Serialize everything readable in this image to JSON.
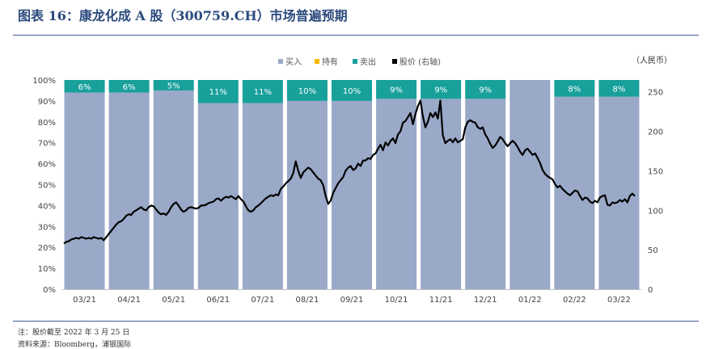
{
  "title": "图表 16：康龙化成 A 股（300759.CH）市场普遍预期",
  "note": "注：股价截至 2022 年 3 月 25 日",
  "source": "资料来源：Bloomberg，浦银国际",
  "colors": {
    "buy": "#9aa9c8",
    "hold": "#f5b800",
    "sell": "#18a09b",
    "price": "#000000",
    "rule": "#3d5f95"
  },
  "chart_data": {
    "type": "bar",
    "stacked": true,
    "percent": true,
    "right_axis_unit": "（人民币）",
    "legend": [
      "买入",
      "持有",
      "卖出",
      "股价 (右轴)"
    ],
    "legend_position": "top",
    "categories": [
      "03/21",
      "04/21",
      "05/21",
      "06/21",
      "07/21",
      "08/21",
      "09/21",
      "10/21",
      "11/21",
      "12/21",
      "01/22",
      "02/22",
      "03/22"
    ],
    "series": [
      {
        "name": "买入",
        "values": [
          94,
          94,
          95,
          89,
          89,
          90,
          90,
          91,
          91,
          91,
          100,
          92,
          92
        ]
      },
      {
        "name": "持有",
        "values": [
          0,
          0,
          0,
          0,
          0,
          0,
          0,
          0,
          0,
          0,
          0,
          0,
          0
        ]
      },
      {
        "name": "卖出",
        "values": [
          6,
          6,
          5,
          11,
          11,
          10,
          10,
          9,
          9,
          9,
          0,
          8,
          8
        ]
      }
    ],
    "sell_labels": [
      "6%",
      "6%",
      "5%",
      "11%",
      "11%",
      "10%",
      "10%",
      "9%",
      "9%",
      "9%",
      "",
      "8%",
      "8%"
    ],
    "y_left": {
      "ylim": [
        0,
        100
      ],
      "ticks": [
        "0%",
        "10%",
        "20%",
        "30%",
        "40%",
        "50%",
        "60%",
        "70%",
        "80%",
        "90%",
        "100%"
      ]
    },
    "y_right": {
      "ylim": [
        0,
        265
      ],
      "ticks": [
        0,
        50,
        100,
        150,
        200,
        250
      ]
    },
    "price_line": {
      "name": "股价 (右轴)",
      "values": [
        58,
        60,
        61,
        63,
        64,
        65,
        64,
        66,
        65,
        64,
        65,
        64,
        66,
        65,
        64,
        65,
        62,
        66,
        70,
        74,
        78,
        82,
        85,
        86,
        89,
        93,
        95,
        94,
        98,
        100,
        102,
        104,
        101,
        100,
        104,
        106,
        105,
        101,
        97,
        95,
        96,
        94,
        98,
        104,
        108,
        110,
        106,
        101,
        98,
        100,
        103,
        104,
        103,
        102,
        103,
        106,
        106,
        107,
        109,
        110,
        111,
        114,
        115,
        112,
        115,
        117,
        116,
        118,
        116,
        114,
        118,
        114,
        111,
        105,
        100,
        98,
        100,
        104,
        106,
        109,
        112,
        115,
        117,
        119,
        118,
        120,
        119,
        127,
        130,
        134,
        137,
        140,
        147,
        162,
        150,
        141,
        148,
        151,
        154,
        152,
        148,
        144,
        140,
        138,
        132,
        118,
        108,
        112,
        122,
        128,
        134,
        138,
        142,
        150,
        154,
        156,
        151,
        153,
        159,
        156,
        163,
        163,
        166,
        165,
        170,
        172,
        178,
        183,
        176,
        186,
        182,
        188,
        191,
        185,
        196,
        200,
        211,
        213,
        218,
        223,
        209,
        222,
        232,
        239,
        219,
        205,
        212,
        223,
        218,
        224,
        216,
        239,
        195,
        185,
        188,
        190,
        186,
        191,
        186,
        188,
        190,
        205,
        212,
        214,
        212,
        211,
        205,
        203,
        205,
        196,
        191,
        184,
        179,
        182,
        187,
        193,
        190,
        185,
        181,
        185,
        188,
        185,
        180,
        174,
        170,
        176,
        178,
        174,
        170,
        172,
        166,
        160,
        151,
        146,
        143,
        141,
        139,
        133,
        129,
        131,
        127,
        124,
        121,
        119,
        122,
        125,
        124,
        118,
        113,
        116,
        115,
        111,
        109,
        112,
        110,
        116,
        118,
        119,
        107,
        106,
        110,
        109,
        110,
        113,
        111,
        114,
        110,
        118,
        121,
        118
      ]
    }
  }
}
